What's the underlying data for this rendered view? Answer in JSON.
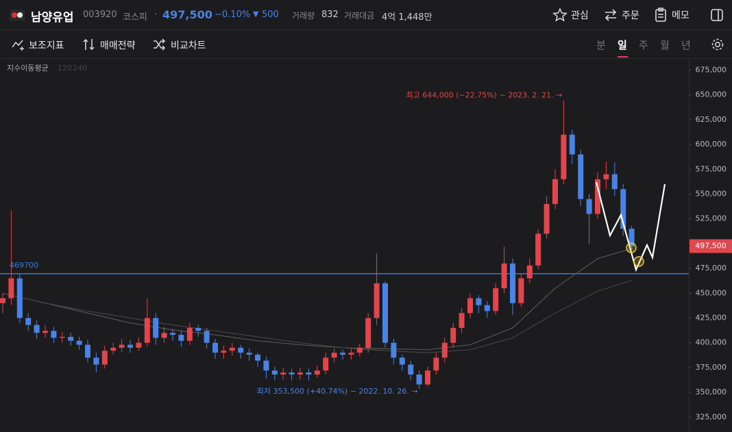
{
  "header": {
    "name": "남양유업",
    "code": "003920",
    "market": "코스피",
    "separator": "·",
    "price": "497,500",
    "change_pct": "−0.10%",
    "change": "500",
    "volume_label": "거래량",
    "volume": "832",
    "trade_value_label": "거래대금",
    "trade_value": "4억 1,448만",
    "actions": [
      "관심",
      "주문",
      "메모"
    ]
  },
  "toolbar": {
    "tools": [
      "보조지표",
      "매매전략",
      "비교차트"
    ],
    "periods": [
      "분",
      "일",
      "주",
      "월",
      "년"
    ],
    "active_period": 1
  },
  "chart_data": {
    "type": "candlestick",
    "indicator_label": "지수이동평균",
    "up_color": "#e0464e",
    "down_color": "#4a83e6",
    "open": [
      440000,
      445000,
      465000,
      425000,
      418000,
      410000,
      412000,
      405000,
      406000,
      402000,
      398000,
      385000,
      378000,
      392000,
      395000,
      398000,
      395000,
      400000,
      425000,
      405000,
      410000,
      408000,
      402000,
      415000,
      412000,
      400000,
      390000,
      392000,
      395000,
      390000,
      388000,
      382000,
      372000,
      368000,
      370000,
      368000,
      370000,
      368000,
      372000,
      385000,
      390000,
      388000,
      390000,
      395000,
      425000,
      460000,
      400000,
      385000,
      378000,
      368000,
      358000,
      372000,
      385000,
      400000,
      415000,
      430000,
      445000,
      438000,
      432000,
      455000,
      480000,
      440000,
      465000,
      478000,
      510000,
      540000,
      565000,
      610000,
      590000,
      545000,
      530000,
      565000,
      570000,
      555000,
      515000
    ],
    "high": [
      450000,
      533000,
      470000,
      430000,
      423000,
      418000,
      416000,
      411000,
      410000,
      406000,
      403000,
      390000,
      397000,
      400000,
      404000,
      403000,
      405000,
      445000,
      430000,
      416000,
      414000,
      412000,
      420000,
      418000,
      415000,
      404000,
      397000,
      400000,
      398000,
      394000,
      390000,
      386000,
      376000,
      375000,
      374000,
      375000,
      374000,
      377000,
      390000,
      394000,
      393000,
      394000,
      399000,
      430000,
      490000,
      462000,
      404000,
      388000,
      382000,
      372000,
      376000,
      390000,
      405000,
      420000,
      435000,
      450000,
      448000,
      442000,
      460000,
      497000,
      485000,
      470000,
      485000,
      515000,
      548000,
      575000,
      644000,
      615000,
      595000,
      550000,
      572000,
      583000,
      582000,
      560000,
      518000
    ],
    "low": [
      430000,
      438000,
      420000,
      412000,
      404000,
      405000,
      400000,
      400000,
      397000,
      393000,
      380000,
      370000,
      374000,
      388000,
      391000,
      390000,
      392000,
      396000,
      398000,
      400000,
      402000,
      396000,
      398000,
      406000,
      394000,
      384000,
      384000,
      387000,
      384000,
      382000,
      376000,
      364000,
      362000,
      363000,
      362000,
      363000,
      362000,
      365000,
      368000,
      380000,
      383000,
      383000,
      386000,
      390000,
      418000,
      395000,
      378000,
      372000,
      362000,
      353500,
      356000,
      368000,
      380000,
      395000,
      410000,
      425000,
      430000,
      425000,
      428000,
      450000,
      428000,
      436000,
      460000,
      474000,
      505000,
      535000,
      560000,
      580000,
      538000,
      500000,
      525000,
      555000,
      548000,
      508000,
      494000
    ],
    "close": [
      445000,
      465000,
      425000,
      418000,
      410000,
      412000,
      405000,
      406000,
      402000,
      398000,
      385000,
      378000,
      392000,
      395000,
      398000,
      395000,
      400000,
      425000,
      405000,
      410000,
      408000,
      402000,
      415000,
      412000,
      400000,
      390000,
      392000,
      395000,
      390000,
      388000,
      382000,
      372000,
      368000,
      370000,
      368000,
      370000,
      368000,
      372000,
      385000,
      390000,
      388000,
      390000,
      395000,
      425000,
      460000,
      400000,
      385000,
      378000,
      368000,
      358000,
      372000,
      385000,
      400000,
      415000,
      430000,
      445000,
      438000,
      432000,
      455000,
      480000,
      440000,
      465000,
      478000,
      510000,
      540000,
      565000,
      610000,
      590000,
      545000,
      530000,
      565000,
      570000,
      555000,
      515000,
      497500
    ],
    "moving_averages": [
      {
        "name": "120",
        "color": "#555555",
        "x": [
          0,
          5,
          10,
          15,
          20,
          25,
          30,
          35,
          40,
          45,
          50,
          55,
          60,
          65,
          70,
          74
        ],
        "values": [
          450000,
          440000,
          430000,
          420000,
          413000,
          408000,
          402000,
          398000,
          395000,
          394000,
          393000,
          398000,
          415000,
          455000,
          485000,
          495000
        ]
      },
      {
        "name": "240",
        "color": "#444444",
        "x": [
          1,
          5,
          10,
          15,
          20,
          25,
          30,
          35,
          40,
          45,
          50,
          55,
          60,
          65,
          70,
          74
        ],
        "values": [
          448000,
          440000,
          432000,
          425000,
          418000,
          412000,
          406000,
          400000,
          395000,
          392000,
          390000,
          393000,
          405000,
          430000,
          452000,
          463000
        ]
      }
    ],
    "horizontal_line": {
      "value": 469700,
      "color": "#2f7de1"
    },
    "high_annotation": {
      "text": "최고 644,000 (−22.75%) − 2023. 2. 21. →",
      "index": 66,
      "color": "#e0464e"
    },
    "low_annotation": {
      "text": "최저 353,500 (+40.74%) − 2022. 10. 26. →",
      "index": 49,
      "color": "#4a83e6"
    },
    "last_price": {
      "value": 497500,
      "label": "497,500"
    },
    "ylim": [
      310000,
      685000
    ],
    "yticks": [
      {
        "value": 325000,
        "label": "325,000"
      },
      {
        "value": 350000,
        "label": "350,000"
      },
      {
        "value": 375000,
        "label": "375,000"
      },
      {
        "value": 400000,
        "label": "400,000"
      },
      {
        "value": 425000,
        "label": "425,000"
      },
      {
        "value": 450000,
        "label": "450,000"
      },
      {
        "value": 475000,
        "label": "475,000"
      },
      {
        "value": 500000,
        "label": "500,000"
      },
      {
        "value": 525000,
        "label": "525,000"
      },
      {
        "value": 550000,
        "label": "550,000"
      },
      {
        "value": 575000,
        "label": "575,000"
      },
      {
        "value": 600000,
        "label": "600,000"
      },
      {
        "value": 625000,
        "label": "625,000"
      },
      {
        "value": 650000,
        "label": "650,000"
      },
      {
        "value": 675000,
        "label": "675,000"
      }
    ]
  }
}
